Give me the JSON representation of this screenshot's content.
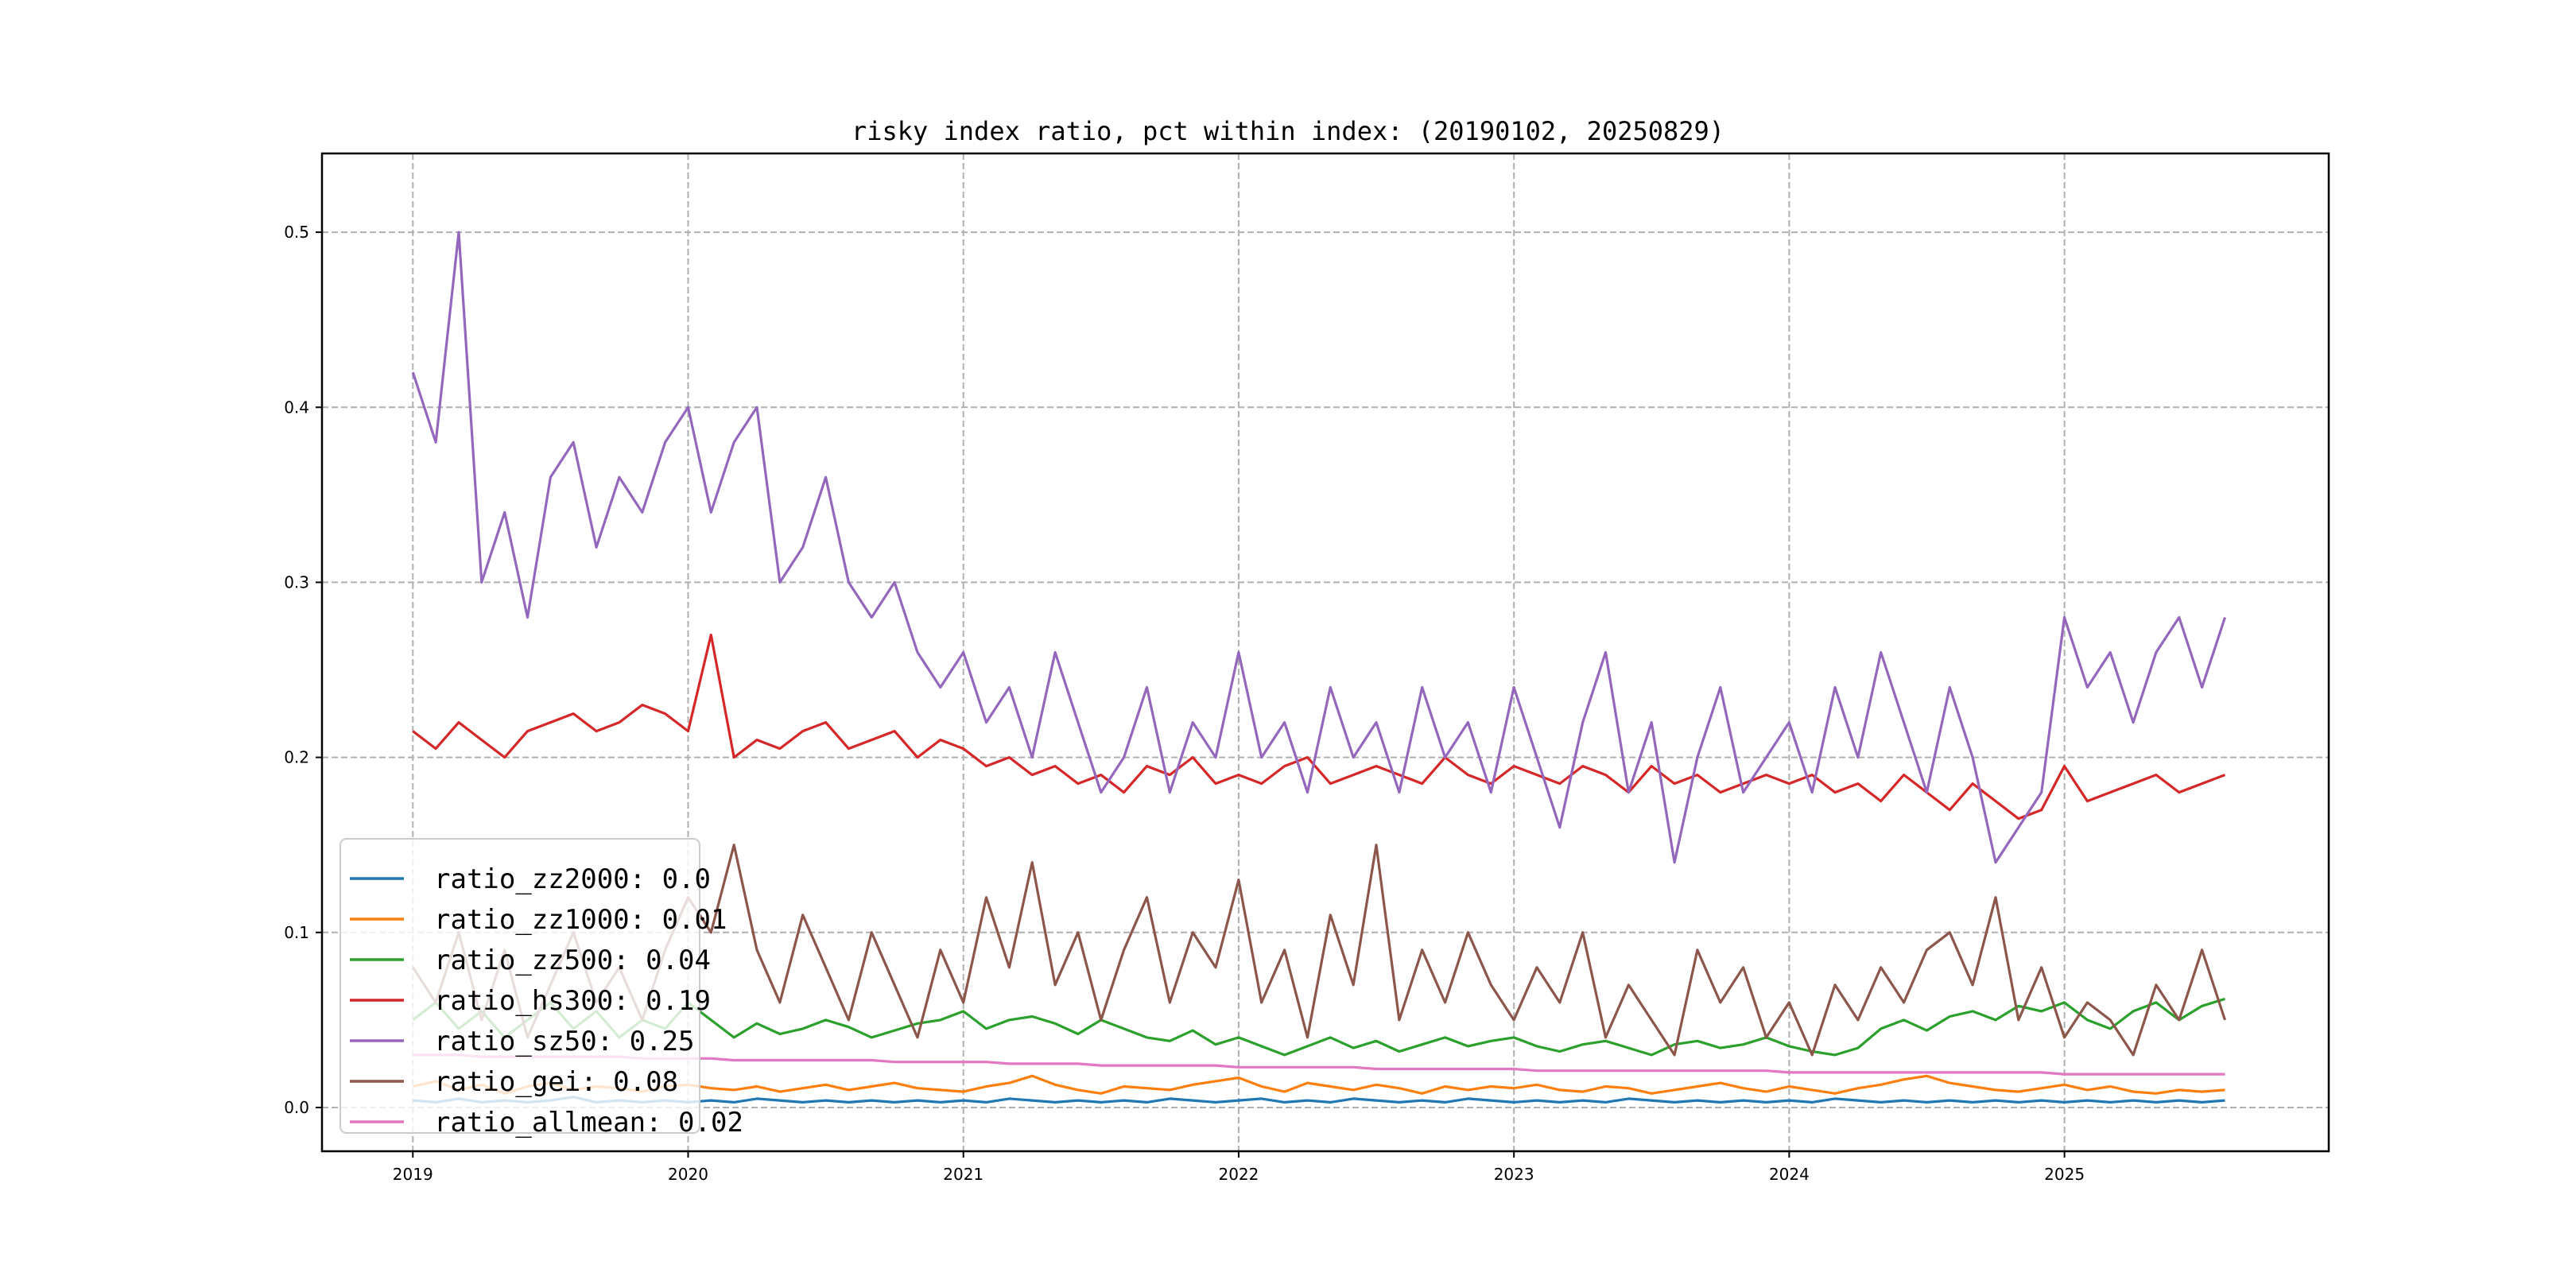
{
  "chart_data": {
    "type": "line",
    "title": "risky index ratio, pct within index: (20190102, 20250829)",
    "xlabel": "",
    "ylabel": "",
    "xlim": [
      2018.67,
      2025.96
    ],
    "ylim": [
      -0.025,
      0.545
    ],
    "grid": true,
    "legend_placement": "lower-left",
    "x_ticks": [
      2019,
      2020,
      2021,
      2022,
      2023,
      2024,
      2025
    ],
    "x_tick_labels": [
      "2019",
      "2020",
      "2021",
      "2022",
      "2023",
      "2024",
      "2025"
    ],
    "y_ticks": [
      0.0,
      0.1,
      0.2,
      0.3,
      0.4,
      0.5
    ],
    "y_tick_labels": [
      "0.0",
      "0.1",
      "0.2",
      "0.3",
      "0.4",
      "0.5"
    ],
    "x_start": 2019.0,
    "x_step_years": 0.08333,
    "series": [
      {
        "name": "ratio_zz2000",
        "legend": "ratio_zz2000: 0.0",
        "color": "#1f77b4",
        "values": [
          0.004,
          0.003,
          0.005,
          0.003,
          0.004,
          0.003,
          0.004,
          0.006,
          0.003,
          0.004,
          0.003,
          0.004,
          0.003,
          0.004,
          0.003,
          0.005,
          0.004,
          0.003,
          0.004,
          0.003,
          0.004,
          0.003,
          0.004,
          0.003,
          0.004,
          0.003,
          0.005,
          0.004,
          0.003,
          0.004,
          0.003,
          0.004,
          0.003,
          0.005,
          0.004,
          0.003,
          0.004,
          0.005,
          0.003,
          0.004,
          0.003,
          0.005,
          0.004,
          0.003,
          0.004,
          0.003,
          0.005,
          0.004,
          0.003,
          0.004,
          0.003,
          0.004,
          0.003,
          0.005,
          0.004,
          0.003,
          0.004,
          0.003,
          0.004,
          0.003,
          0.004,
          0.003,
          0.005,
          0.004,
          0.003,
          0.004,
          0.003,
          0.004,
          0.003,
          0.004,
          0.003,
          0.004,
          0.003,
          0.004,
          0.003,
          0.004,
          0.003,
          0.004,
          0.003,
          0.004
        ]
      },
      {
        "name": "ratio_zz1000",
        "legend": "ratio_zz1000: 0.01",
        "color": "#ff7f0e",
        "values": [
          0.012,
          0.015,
          0.01,
          0.013,
          0.008,
          0.012,
          0.014,
          0.01,
          0.012,
          0.011,
          0.009,
          0.012,
          0.013,
          0.011,
          0.01,
          0.012,
          0.009,
          0.011,
          0.013,
          0.01,
          0.012,
          0.014,
          0.011,
          0.01,
          0.009,
          0.012,
          0.014,
          0.018,
          0.013,
          0.01,
          0.008,
          0.012,
          0.011,
          0.01,
          0.013,
          0.015,
          0.017,
          0.012,
          0.009,
          0.014,
          0.012,
          0.01,
          0.013,
          0.011,
          0.008,
          0.012,
          0.01,
          0.012,
          0.011,
          0.013,
          0.01,
          0.009,
          0.012,
          0.011,
          0.008,
          0.01,
          0.012,
          0.014,
          0.011,
          0.009,
          0.012,
          0.01,
          0.008,
          0.011,
          0.013,
          0.016,
          0.018,
          0.014,
          0.012,
          0.01,
          0.009,
          0.011,
          0.013,
          0.01,
          0.012,
          0.009,
          0.008,
          0.01,
          0.009,
          0.01
        ]
      },
      {
        "name": "ratio_zz500",
        "legend": "ratio_zz500: 0.04",
        "color": "#2ca02c",
        "values": [
          0.05,
          0.06,
          0.045,
          0.055,
          0.04,
          0.05,
          0.06,
          0.045,
          0.055,
          0.04,
          0.05,
          0.045,
          0.06,
          0.05,
          0.04,
          0.048,
          0.042,
          0.045,
          0.05,
          0.046,
          0.04,
          0.044,
          0.048,
          0.05,
          0.055,
          0.045,
          0.05,
          0.052,
          0.048,
          0.042,
          0.05,
          0.045,
          0.04,
          0.038,
          0.044,
          0.036,
          0.04,
          0.035,
          0.03,
          0.035,
          0.04,
          0.034,
          0.038,
          0.032,
          0.036,
          0.04,
          0.035,
          0.038,
          0.04,
          0.035,
          0.032,
          0.036,
          0.038,
          0.034,
          0.03,
          0.036,
          0.038,
          0.034,
          0.036,
          0.04,
          0.035,
          0.032,
          0.03,
          0.034,
          0.045,
          0.05,
          0.044,
          0.052,
          0.055,
          0.05,
          0.058,
          0.055,
          0.06,
          0.05,
          0.045,
          0.055,
          0.06,
          0.05,
          0.058,
          0.062
        ]
      },
      {
        "name": "ratio_hs300",
        "legend": "ratio_hs300: 0.19",
        "color": "#d62728",
        "values": [
          0.215,
          0.205,
          0.22,
          0.21,
          0.2,
          0.215,
          0.22,
          0.225,
          0.215,
          0.22,
          0.23,
          0.225,
          0.215,
          0.27,
          0.2,
          0.21,
          0.205,
          0.215,
          0.22,
          0.205,
          0.21,
          0.215,
          0.2,
          0.21,
          0.205,
          0.195,
          0.2,
          0.19,
          0.195,
          0.185,
          0.19,
          0.18,
          0.195,
          0.19,
          0.2,
          0.185,
          0.19,
          0.185,
          0.195,
          0.2,
          0.185,
          0.19,
          0.195,
          0.19,
          0.185,
          0.2,
          0.19,
          0.185,
          0.195,
          0.19,
          0.185,
          0.195,
          0.19,
          0.18,
          0.195,
          0.185,
          0.19,
          0.18,
          0.185,
          0.19,
          0.185,
          0.19,
          0.18,
          0.185,
          0.175,
          0.19,
          0.18,
          0.17,
          0.185,
          0.175,
          0.165,
          0.17,
          0.195,
          0.175,
          0.18,
          0.185,
          0.19,
          0.18,
          0.185,
          0.19
        ]
      },
      {
        "name": "ratio_sz50",
        "legend": "ratio_sz50: 0.25",
        "color": "#9467bd",
        "values": [
          0.42,
          0.38,
          0.5,
          0.3,
          0.34,
          0.28,
          0.36,
          0.38,
          0.32,
          0.36,
          0.34,
          0.38,
          0.4,
          0.34,
          0.38,
          0.4,
          0.3,
          0.32,
          0.36,
          0.3,
          0.28,
          0.3,
          0.26,
          0.24,
          0.26,
          0.22,
          0.24,
          0.2,
          0.26,
          0.22,
          0.18,
          0.2,
          0.24,
          0.18,
          0.22,
          0.2,
          0.26,
          0.2,
          0.22,
          0.18,
          0.24,
          0.2,
          0.22,
          0.18,
          0.24,
          0.2,
          0.22,
          0.18,
          0.24,
          0.2,
          0.16,
          0.22,
          0.26,
          0.18,
          0.22,
          0.14,
          0.2,
          0.24,
          0.18,
          0.2,
          0.22,
          0.18,
          0.24,
          0.2,
          0.26,
          0.22,
          0.18,
          0.24,
          0.2,
          0.14,
          0.16,
          0.18,
          0.28,
          0.24,
          0.26,
          0.22,
          0.26,
          0.28,
          0.24,
          0.28
        ]
      },
      {
        "name": "ratio_gei",
        "legend": "ratio_gei: 0.08",
        "color": "#8c564b",
        "values": [
          0.08,
          0.06,
          0.1,
          0.05,
          0.09,
          0.04,
          0.07,
          0.1,
          0.06,
          0.08,
          0.05,
          0.09,
          0.12,
          0.1,
          0.15,
          0.09,
          0.06,
          0.11,
          0.08,
          0.05,
          0.1,
          0.07,
          0.04,
          0.09,
          0.06,
          0.12,
          0.08,
          0.14,
          0.07,
          0.1,
          0.05,
          0.09,
          0.12,
          0.06,
          0.1,
          0.08,
          0.13,
          0.06,
          0.09,
          0.04,
          0.11,
          0.07,
          0.15,
          0.05,
          0.09,
          0.06,
          0.1,
          0.07,
          0.05,
          0.08,
          0.06,
          0.1,
          0.04,
          0.07,
          0.05,
          0.03,
          0.09,
          0.06,
          0.08,
          0.04,
          0.06,
          0.03,
          0.07,
          0.05,
          0.08,
          0.06,
          0.09,
          0.1,
          0.07,
          0.12,
          0.05,
          0.08,
          0.04,
          0.06,
          0.05,
          0.03,
          0.07,
          0.05,
          0.09,
          0.05
        ]
      },
      {
        "name": "ratio_allmean",
        "legend": "ratio_allmean: 0.02",
        "color": "#e377c2",
        "values": [
          0.03,
          0.03,
          0.03,
          0.029,
          0.029,
          0.029,
          0.029,
          0.029,
          0.029,
          0.029,
          0.028,
          0.028,
          0.028,
          0.028,
          0.027,
          0.027,
          0.027,
          0.027,
          0.027,
          0.027,
          0.027,
          0.026,
          0.026,
          0.026,
          0.026,
          0.026,
          0.025,
          0.025,
          0.025,
          0.025,
          0.024,
          0.024,
          0.024,
          0.024,
          0.024,
          0.024,
          0.023,
          0.023,
          0.023,
          0.023,
          0.023,
          0.023,
          0.022,
          0.022,
          0.022,
          0.022,
          0.022,
          0.022,
          0.022,
          0.021,
          0.021,
          0.021,
          0.021,
          0.021,
          0.021,
          0.021,
          0.021,
          0.021,
          0.021,
          0.021,
          0.02,
          0.02,
          0.02,
          0.02,
          0.02,
          0.02,
          0.02,
          0.02,
          0.02,
          0.02,
          0.02,
          0.02,
          0.019,
          0.019,
          0.019,
          0.019,
          0.019,
          0.019,
          0.019,
          0.019
        ]
      }
    ]
  }
}
